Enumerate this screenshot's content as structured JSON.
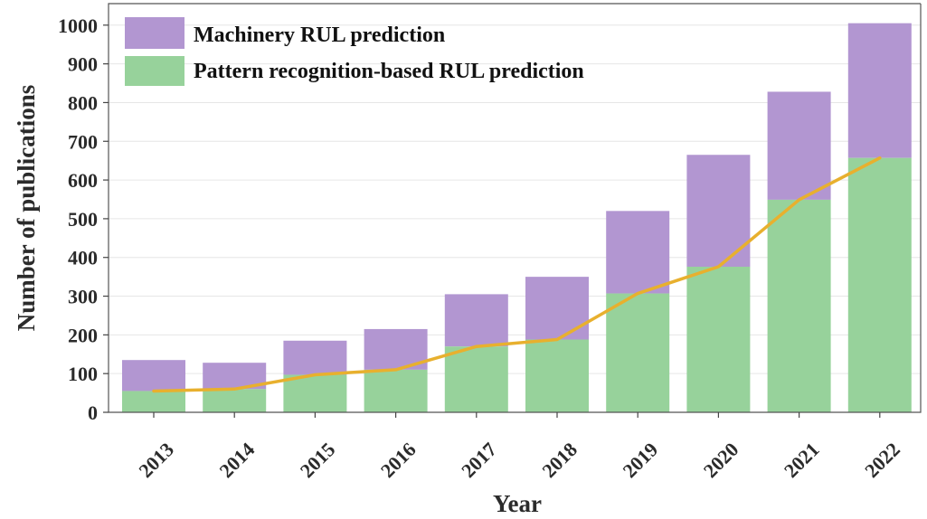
{
  "chart_data": {
    "type": "bar",
    "stacked": true,
    "xlabel": "Year",
    "ylabel": "Number of publications",
    "ylim": [
      0,
      1000
    ],
    "yticks": [
      "0",
      "100",
      "200",
      "300",
      "400",
      "500",
      "600",
      "700",
      "800",
      "900",
      "1000"
    ],
    "grid": "horizontal",
    "legend_position": "top-left",
    "categories": [
      "2013",
      "2014",
      "2015",
      "2016",
      "2017",
      "2018",
      "2019",
      "2020",
      "2021",
      "2022"
    ],
    "series": [
      {
        "name": "Pattern recognition-based RUL prediction",
        "color": "#97d29b",
        "values": [
          55,
          60,
          97,
          110,
          170,
          188,
          307,
          376,
          549,
          657
        ]
      },
      {
        "name": "Machinery RUL prediction",
        "color": "#b296d1",
        "total_values": [
          135,
          128,
          185,
          215,
          305,
          350,
          520,
          665,
          828,
          1005
        ]
      }
    ],
    "trend_line": {
      "color": "#e8b02e",
      "follows": "Pattern recognition-based RUL prediction"
    }
  }
}
